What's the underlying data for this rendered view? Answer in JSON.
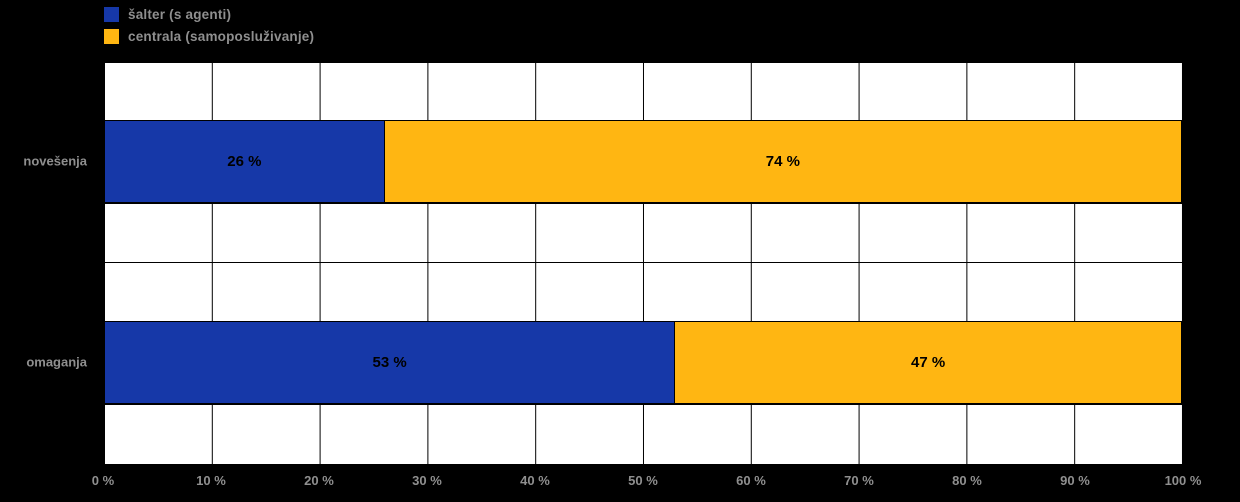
{
  "page": {
    "background": "#000000"
  },
  "chart_data": {
    "type": "bar",
    "orientation": "horizontal",
    "stacked": true,
    "title": "",
    "xlabel": "",
    "ylabel": "",
    "xlim": [
      0,
      100
    ],
    "grid": true,
    "legend_position": "top-left",
    "categories": [
      "novešenja",
      "omaganja"
    ],
    "series": [
      {
        "name": "šalter (s agenti)",
        "color": "#1638A8",
        "values": [
          26,
          53
        ]
      },
      {
        "name": "centrala (samoposluživanje)",
        "color": "#FFB612",
        "values": [
          74,
          47
        ]
      }
    ],
    "value_labels": [
      [
        "26 %",
        "74 %"
      ],
      [
        "53 %",
        "47 %"
      ]
    ],
    "x_ticks": [
      "0 %",
      "10 %",
      "20 %",
      "30 %",
      "40 %",
      "50 %",
      "60 %",
      "70 %",
      "80 %",
      "90 %",
      "100 %"
    ]
  }
}
